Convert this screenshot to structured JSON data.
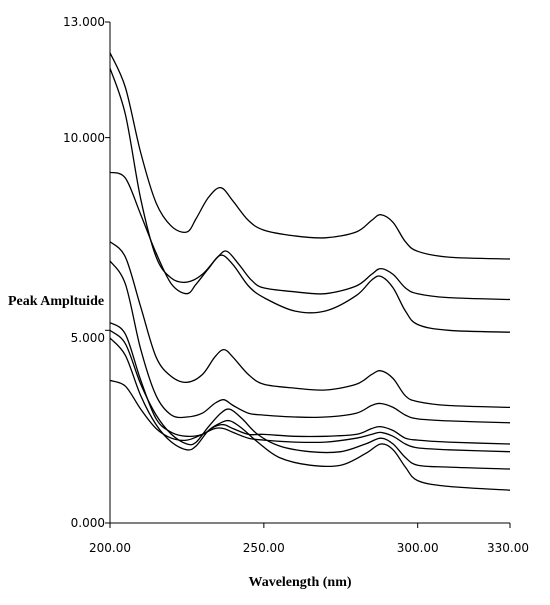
{
  "chart_data": {
    "type": "line",
    "xlabel": "Wavelength (nm)",
    "ylabel": "Peak Ampltuide",
    "xlim": [
      200,
      330
    ],
    "ylim": [
      0,
      13
    ],
    "x_tick_labels": [
      "200.00",
      "250.00",
      "300.00",
      "330.00"
    ],
    "y_tick_labels": [
      "0.000",
      "5.000",
      "10.000",
      "13.000"
    ],
    "grid": false,
    "legend": "none",
    "series": [
      {
        "points": [
          [
            200,
            12.2
          ],
          [
            205,
            11.3
          ],
          [
            210,
            9.6
          ],
          [
            215,
            8.3
          ],
          [
            220,
            7.7
          ],
          [
            225,
            7.55
          ],
          [
            228,
            7.9
          ],
          [
            232,
            8.45
          ],
          [
            236,
            8.7
          ],
          [
            240,
            8.35
          ],
          [
            245,
            7.85
          ],
          [
            250,
            7.6
          ],
          [
            260,
            7.45
          ],
          [
            270,
            7.4
          ],
          [
            280,
            7.55
          ],
          [
            285,
            7.85
          ],
          [
            288,
            8.0
          ],
          [
            292,
            7.8
          ],
          [
            296,
            7.3
          ],
          [
            300,
            7.05
          ],
          [
            310,
            6.9
          ],
          [
            330,
            6.85
          ]
        ]
      },
      {
        "points": [
          [
            200,
            11.8
          ],
          [
            205,
            10.6
          ],
          [
            210,
            8.4
          ],
          [
            215,
            6.9
          ],
          [
            220,
            6.35
          ],
          [
            225,
            6.25
          ],
          [
            230,
            6.45
          ],
          [
            235,
            6.9
          ],
          [
            238,
            7.05
          ],
          [
            242,
            6.7
          ],
          [
            246,
            6.3
          ],
          [
            250,
            6.1
          ],
          [
            260,
            6.0
          ],
          [
            270,
            5.95
          ],
          [
            280,
            6.15
          ],
          [
            285,
            6.45
          ],
          [
            288,
            6.6
          ],
          [
            292,
            6.45
          ],
          [
            296,
            6.1
          ],
          [
            300,
            5.95
          ],
          [
            310,
            5.85
          ],
          [
            330,
            5.8
          ]
        ]
      },
      {
        "points": [
          [
            200,
            9.1
          ],
          [
            205,
            8.95
          ],
          [
            210,
            8.0
          ],
          [
            215,
            7.0
          ],
          [
            220,
            6.2
          ],
          [
            225,
            5.95
          ],
          [
            228,
            6.2
          ],
          [
            232,
            6.6
          ],
          [
            236,
            6.95
          ],
          [
            240,
            6.7
          ],
          [
            245,
            6.15
          ],
          [
            250,
            5.85
          ],
          [
            260,
            5.5
          ],
          [
            270,
            5.5
          ],
          [
            280,
            5.9
          ],
          [
            285,
            6.3
          ],
          [
            288,
            6.4
          ],
          [
            292,
            6.1
          ],
          [
            296,
            5.5
          ],
          [
            300,
            5.15
          ],
          [
            310,
            5.0
          ],
          [
            330,
            4.95
          ]
        ]
      },
      {
        "points": [
          [
            200,
            7.3
          ],
          [
            205,
            6.9
          ],
          [
            210,
            5.6
          ],
          [
            215,
            4.3
          ],
          [
            220,
            3.8
          ],
          [
            225,
            3.65
          ],
          [
            230,
            3.85
          ],
          [
            234,
            4.3
          ],
          [
            237,
            4.5
          ],
          [
            240,
            4.3
          ],
          [
            245,
            3.85
          ],
          [
            250,
            3.6
          ],
          [
            260,
            3.5
          ],
          [
            270,
            3.45
          ],
          [
            280,
            3.6
          ],
          [
            285,
            3.85
          ],
          [
            288,
            3.95
          ],
          [
            292,
            3.75
          ],
          [
            296,
            3.3
          ],
          [
            300,
            3.15
          ],
          [
            310,
            3.05
          ],
          [
            330,
            3.0
          ]
        ]
      },
      {
        "points": [
          [
            200,
            6.8
          ],
          [
            205,
            6.2
          ],
          [
            210,
            4.5
          ],
          [
            215,
            3.3
          ],
          [
            220,
            2.8
          ],
          [
            225,
            2.75
          ],
          [
            230,
            2.85
          ],
          [
            234,
            3.1
          ],
          [
            237,
            3.2
          ],
          [
            240,
            3.05
          ],
          [
            245,
            2.85
          ],
          [
            250,
            2.8
          ],
          [
            260,
            2.75
          ],
          [
            270,
            2.75
          ],
          [
            280,
            2.85
          ],
          [
            285,
            3.05
          ],
          [
            288,
            3.1
          ],
          [
            292,
            3.0
          ],
          [
            296,
            2.8
          ],
          [
            300,
            2.7
          ],
          [
            310,
            2.65
          ],
          [
            330,
            2.6
          ]
        ]
      },
      {
        "points": [
          [
            200,
            5.2
          ],
          [
            205,
            4.9
          ],
          [
            210,
            3.7
          ],
          [
            215,
            2.7
          ],
          [
            220,
            2.35
          ],
          [
            225,
            2.25
          ],
          [
            230,
            2.3
          ],
          [
            234,
            2.5
          ],
          [
            237,
            2.55
          ],
          [
            240,
            2.45
          ],
          [
            245,
            2.3
          ],
          [
            250,
            2.3
          ],
          [
            260,
            2.25
          ],
          [
            270,
            2.25
          ],
          [
            280,
            2.3
          ],
          [
            285,
            2.45
          ],
          [
            288,
            2.5
          ],
          [
            292,
            2.4
          ],
          [
            296,
            2.2
          ],
          [
            300,
            2.15
          ],
          [
            310,
            2.1
          ],
          [
            330,
            2.05
          ]
        ]
      },
      {
        "points": [
          [
            200,
            5.0
          ],
          [
            205,
            4.65
          ],
          [
            210,
            3.6
          ],
          [
            215,
            2.8
          ],
          [
            220,
            2.3
          ],
          [
            225,
            2.05
          ],
          [
            228,
            2.1
          ],
          [
            232,
            2.5
          ],
          [
            236,
            2.85
          ],
          [
            239,
            2.95
          ],
          [
            243,
            2.7
          ],
          [
            248,
            2.3
          ],
          [
            255,
            2.0
          ],
          [
            265,
            1.85
          ],
          [
            275,
            1.85
          ],
          [
            283,
            2.05
          ],
          [
            288,
            2.2
          ],
          [
            292,
            2.05
          ],
          [
            296,
            1.7
          ],
          [
            300,
            1.5
          ],
          [
            310,
            1.45
          ],
          [
            330,
            1.4
          ]
        ]
      },
      {
        "points": [
          [
            200,
            4.8
          ],
          [
            205,
            4.35
          ],
          [
            210,
            3.3
          ],
          [
            215,
            2.55
          ],
          [
            220,
            2.1
          ],
          [
            225,
            1.9
          ],
          [
            228,
            2.0
          ],
          [
            232,
            2.4
          ],
          [
            236,
            2.6
          ],
          [
            239,
            2.65
          ],
          [
            243,
            2.45
          ],
          [
            248,
            2.1
          ],
          [
            255,
            1.7
          ],
          [
            265,
            1.5
          ],
          [
            275,
            1.5
          ],
          [
            283,
            1.8
          ],
          [
            288,
            2.05
          ],
          [
            292,
            1.9
          ],
          [
            296,
            1.45
          ],
          [
            300,
            1.1
          ],
          [
            310,
            0.95
          ],
          [
            330,
            0.85
          ]
        ]
      },
      {
        "points": [
          [
            200,
            3.7
          ],
          [
            205,
            3.55
          ],
          [
            210,
            2.95
          ],
          [
            215,
            2.45
          ],
          [
            220,
            2.2
          ],
          [
            225,
            2.15
          ],
          [
            230,
            2.3
          ],
          [
            234,
            2.45
          ],
          [
            237,
            2.45
          ],
          [
            240,
            2.35
          ],
          [
            245,
            2.2
          ],
          [
            250,
            2.15
          ],
          [
            260,
            2.1
          ],
          [
            270,
            2.1
          ],
          [
            280,
            2.2
          ],
          [
            285,
            2.3
          ],
          [
            288,
            2.35
          ],
          [
            292,
            2.25
          ],
          [
            296,
            2.05
          ],
          [
            300,
            1.95
          ],
          [
            310,
            1.9
          ],
          [
            330,
            1.85
          ]
        ]
      }
    ]
  }
}
